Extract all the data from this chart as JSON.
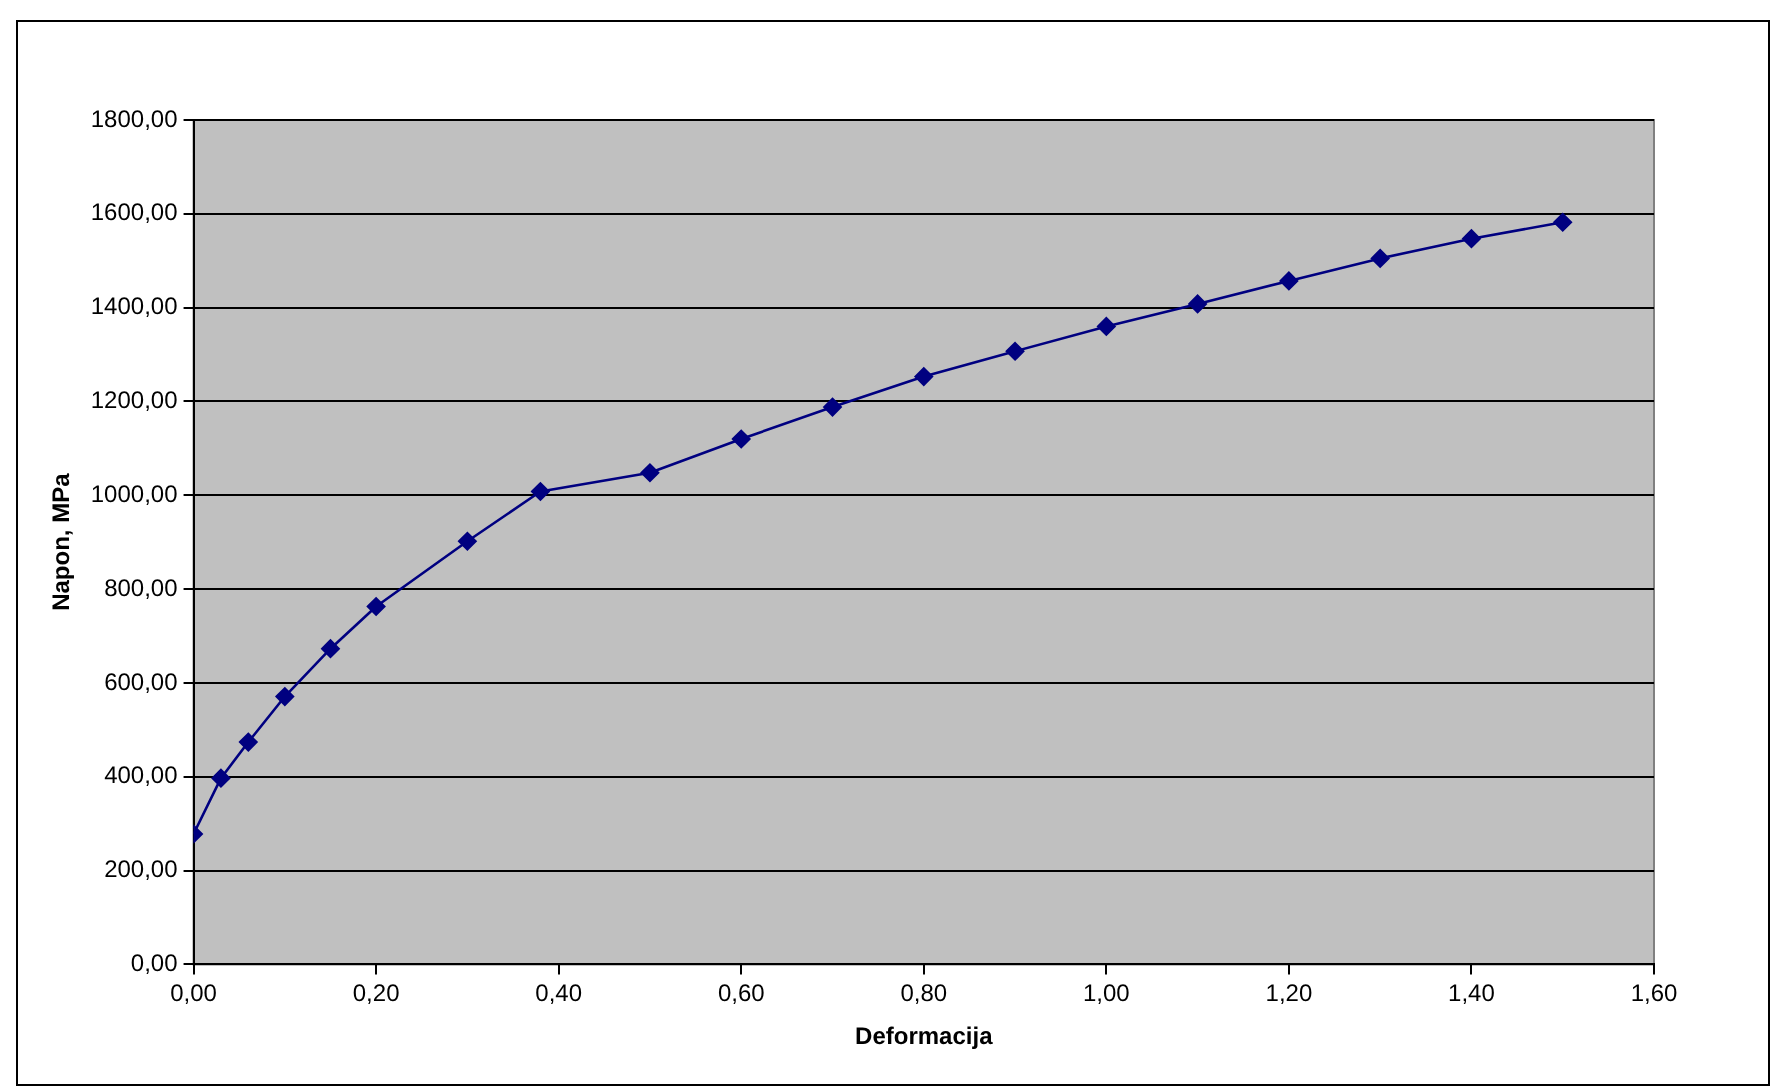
{
  "chart_data": {
    "type": "line",
    "xlabel": "Deformacija",
    "ylabel": "Napon, MPa",
    "x": [
      0,
      0.03,
      0.06,
      0.1,
      0.15,
      0.2,
      0.3,
      0.38,
      0.5,
      0.6,
      0.7,
      0.8,
      0.9,
      1.0,
      1.1,
      1.2,
      1.3,
      1.4,
      1.5
    ],
    "series": [
      {
        "color": "#000080",
        "values": [
          278,
          397,
          474,
          571,
          673,
          763,
          902,
          1008,
          1048,
          1120,
          1188,
          1253,
          1307,
          1360,
          1408,
          1457,
          1505,
          1547,
          1582
        ]
      }
    ],
    "xlim": [
      0,
      1.6
    ],
    "xticks": [
      {
        "value": 0,
        "label": "0,00"
      },
      {
        "value": 0.2,
        "label": "0,20"
      },
      {
        "value": 0.4,
        "label": "0,40"
      },
      {
        "value": 0.6,
        "label": "0,60"
      },
      {
        "value": 0.8,
        "label": "0,80"
      },
      {
        "value": 1.0,
        "label": "1,00"
      },
      {
        "value": 1.2,
        "label": "1,20"
      },
      {
        "value": 1.4,
        "label": "1,40"
      },
      {
        "value": 1.6,
        "label": "1,60"
      }
    ],
    "ylim": [
      0,
      1800
    ],
    "yticks": [
      {
        "value": 0,
        "label": "0,00"
      },
      {
        "value": 200,
        "label": "200,00"
      },
      {
        "value": 400,
        "label": "400,00"
      },
      {
        "value": 600,
        "label": "600,00"
      },
      {
        "value": 800,
        "label": "800,00"
      },
      {
        "value": 1000,
        "label": "1000,00"
      },
      {
        "value": 1200,
        "label": "1200,00"
      },
      {
        "value": 1400,
        "label": "1400,00"
      },
      {
        "value": 1600,
        "label": "1600,00"
      },
      {
        "value": 1800,
        "label": "1800,00"
      }
    ],
    "grid": "y",
    "legend": false,
    "marker": "diamond",
    "line_style": "solid"
  }
}
